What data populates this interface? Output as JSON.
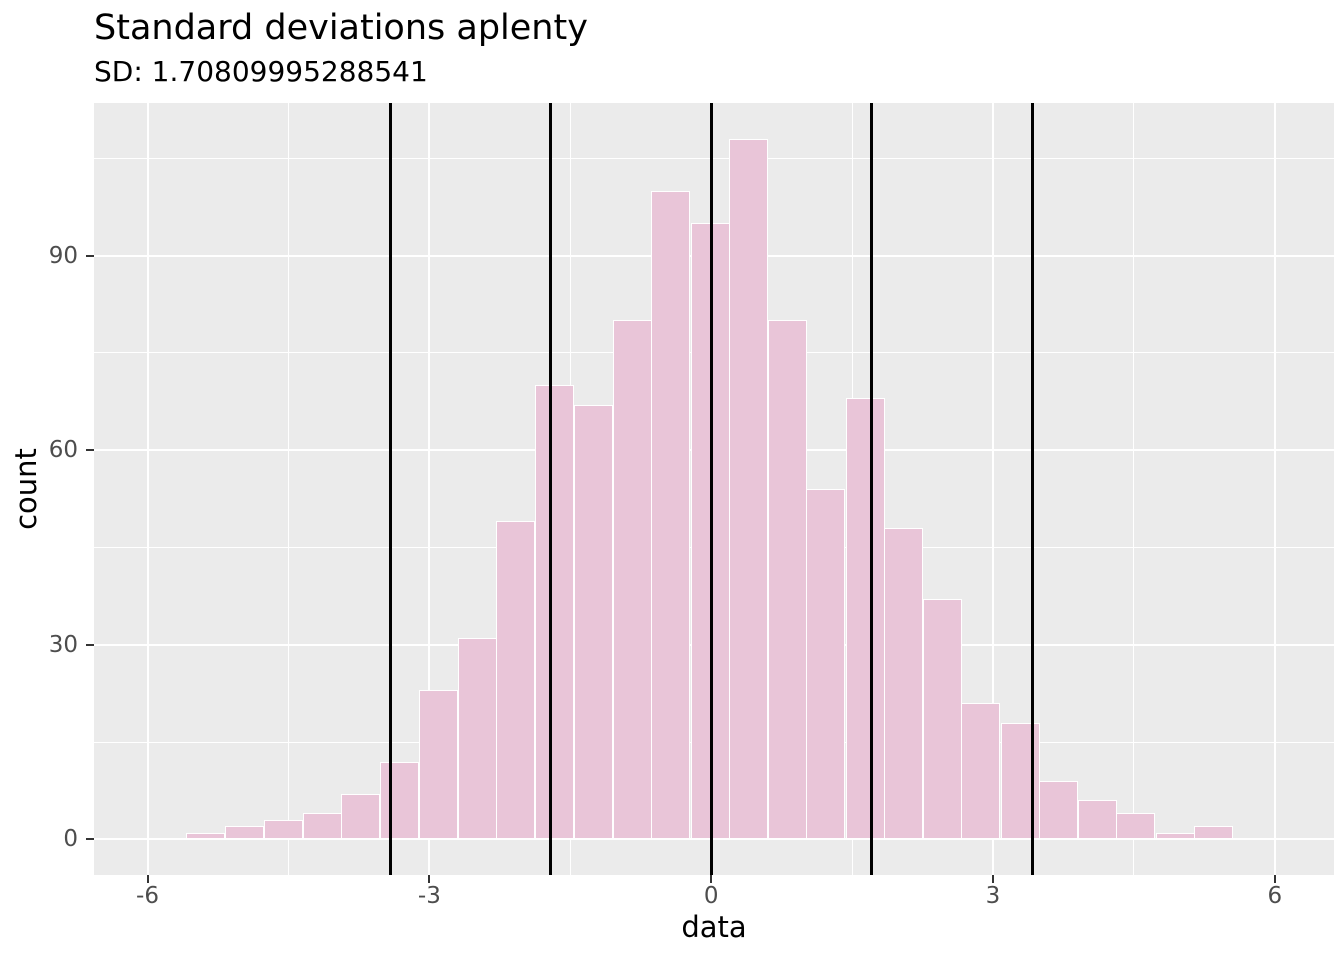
{
  "figure": {
    "title": "Standard deviations aplenty",
    "subtitle": "SD: 1.70809995288541"
  },
  "chart_data": {
    "type": "bar",
    "subtype": "histogram",
    "title": "Standard deviations aplenty",
    "subtitle": "SD: 1.70809995288541",
    "sd_value": "1.70809995288541",
    "xlabel": "data",
    "ylabel": "count",
    "xlim": [
      -6.57,
      6.63
    ],
    "ylim": [
      -5.5,
      113.5
    ],
    "x_major_ticks": [
      -6,
      -3,
      0,
      3,
      6
    ],
    "x_minor_gridlines": [
      -4.5,
      -1.5,
      1.5,
      4.5
    ],
    "y_major_ticks": [
      0,
      30,
      60,
      90
    ],
    "y_minor_gridlines": [
      15,
      45,
      75,
      105
    ],
    "bin_width": 0.413,
    "bin_centers": [
      -5.38,
      -4.97,
      -4.55,
      -4.14,
      -3.73,
      -3.32,
      -2.9,
      -2.49,
      -2.08,
      -1.67,
      -1.25,
      -0.84,
      -0.43,
      -0.01,
      0.4,
      0.81,
      1.22,
      1.64,
      2.05,
      2.46,
      2.87,
      3.29,
      3.7,
      4.11,
      4.52,
      4.94,
      5.35
    ],
    "counts": [
      1,
      2,
      3,
      4,
      7,
      12,
      23,
      31,
      49,
      70,
      67,
      80,
      100,
      95,
      108,
      80,
      54,
      68,
      48,
      37,
      21,
      18,
      9,
      6,
      4,
      1,
      2
    ],
    "vlines": {
      "values": [
        -3.41619990577082,
        -1.70809995288541,
        0,
        1.70809995288541,
        3.41619990577082
      ],
      "color": "#000000"
    },
    "grid": true,
    "legend": false,
    "colors": {
      "bar_fill": "#E9C5D8",
      "bar_stroke": "#FFFFFF",
      "panel_background": "#EBEBEB",
      "gridline": "#FFFFFF",
      "vline": "#000000",
      "tick_label_text": "#4D4D4D",
      "title_text": "#000000",
      "tick_mark": "#333333",
      "figure_background": "#FFFFFF"
    }
  }
}
